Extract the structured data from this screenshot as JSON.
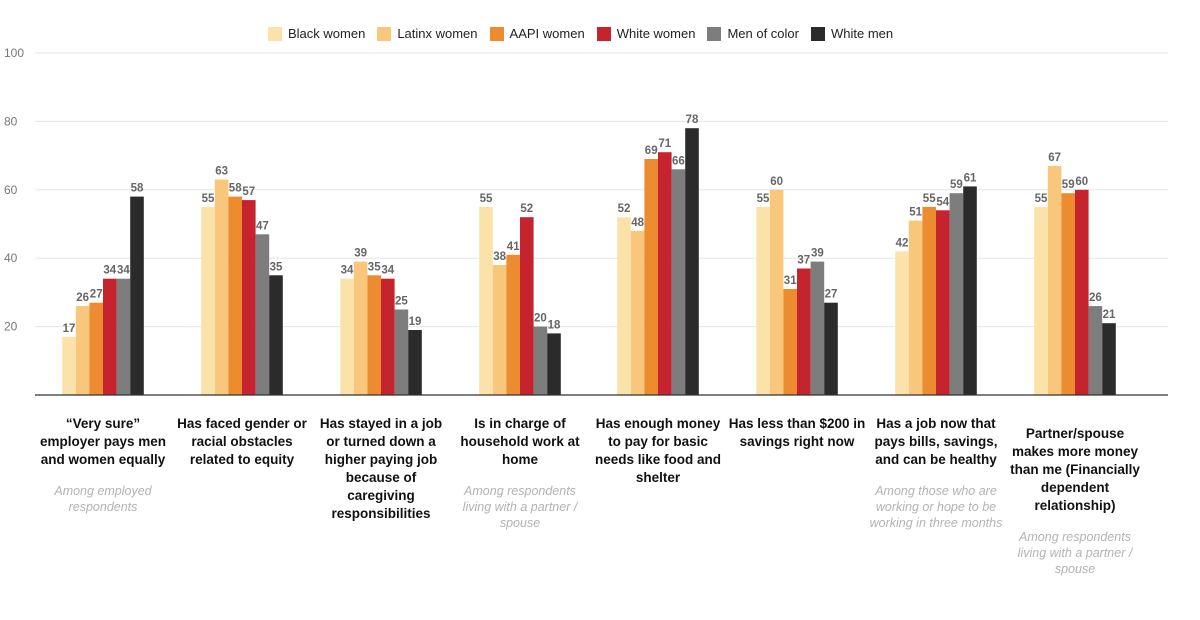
{
  "chart_data": {
    "type": "bar",
    "ylim": [
      0,
      100
    ],
    "yticks": [
      20,
      40,
      60,
      80,
      100
    ],
    "grid": true,
    "legend_position": "top-center",
    "categories": [
      {
        "label": "“Very sure” employer pays men and women equally",
        "note": "Among employed respondents"
      },
      {
        "label": "Has faced gender or racial obstacles related to equity",
        "note": ""
      },
      {
        "label": "Has stayed in a job or turned down a higher paying job because of caregiving responsibilities",
        "note": ""
      },
      {
        "label": "Is in charge of household work at home",
        "note": "Among respondents living with a partner / spouse"
      },
      {
        "label": "Has enough money to pay for basic needs like food and shelter",
        "note": ""
      },
      {
        "label": "Has less than $200 in savings right now",
        "note": ""
      },
      {
        "label": "Has a job now that pays bills, savings, and can be healthy",
        "note": "Among those who are working or hope to be working in three months"
      },
      {
        "label": "Partner/spouse makes more money than me (Financially dependent relationship)",
        "note": "Among respondents living with a partner / spouse"
      }
    ],
    "series": [
      {
        "name": "Black women",
        "color": "#fbe2a8",
        "values": [
          17,
          55,
          34,
          55,
          52,
          55,
          42,
          55
        ]
      },
      {
        "name": "Latinx women",
        "color": "#f8c77c",
        "values": [
          26,
          63,
          39,
          38,
          48,
          60,
          51,
          67
        ]
      },
      {
        "name": "AAPI women",
        "color": "#ec8b2f",
        "values": [
          27,
          58,
          35,
          41,
          69,
          31,
          55,
          59
        ]
      },
      {
        "name": "White women",
        "color": "#c5232e",
        "values": [
          34,
          57,
          34,
          52,
          71,
          37,
          54,
          60
        ]
      },
      {
        "name": "Men of color",
        "color": "#7d7d7d",
        "values": [
          34,
          47,
          25,
          20,
          66,
          39,
          59,
          26
        ]
      },
      {
        "name": "White men",
        "color": "#2b2b2b",
        "values": [
          58,
          35,
          19,
          18,
          78,
          27,
          61,
          21
        ]
      }
    ]
  }
}
